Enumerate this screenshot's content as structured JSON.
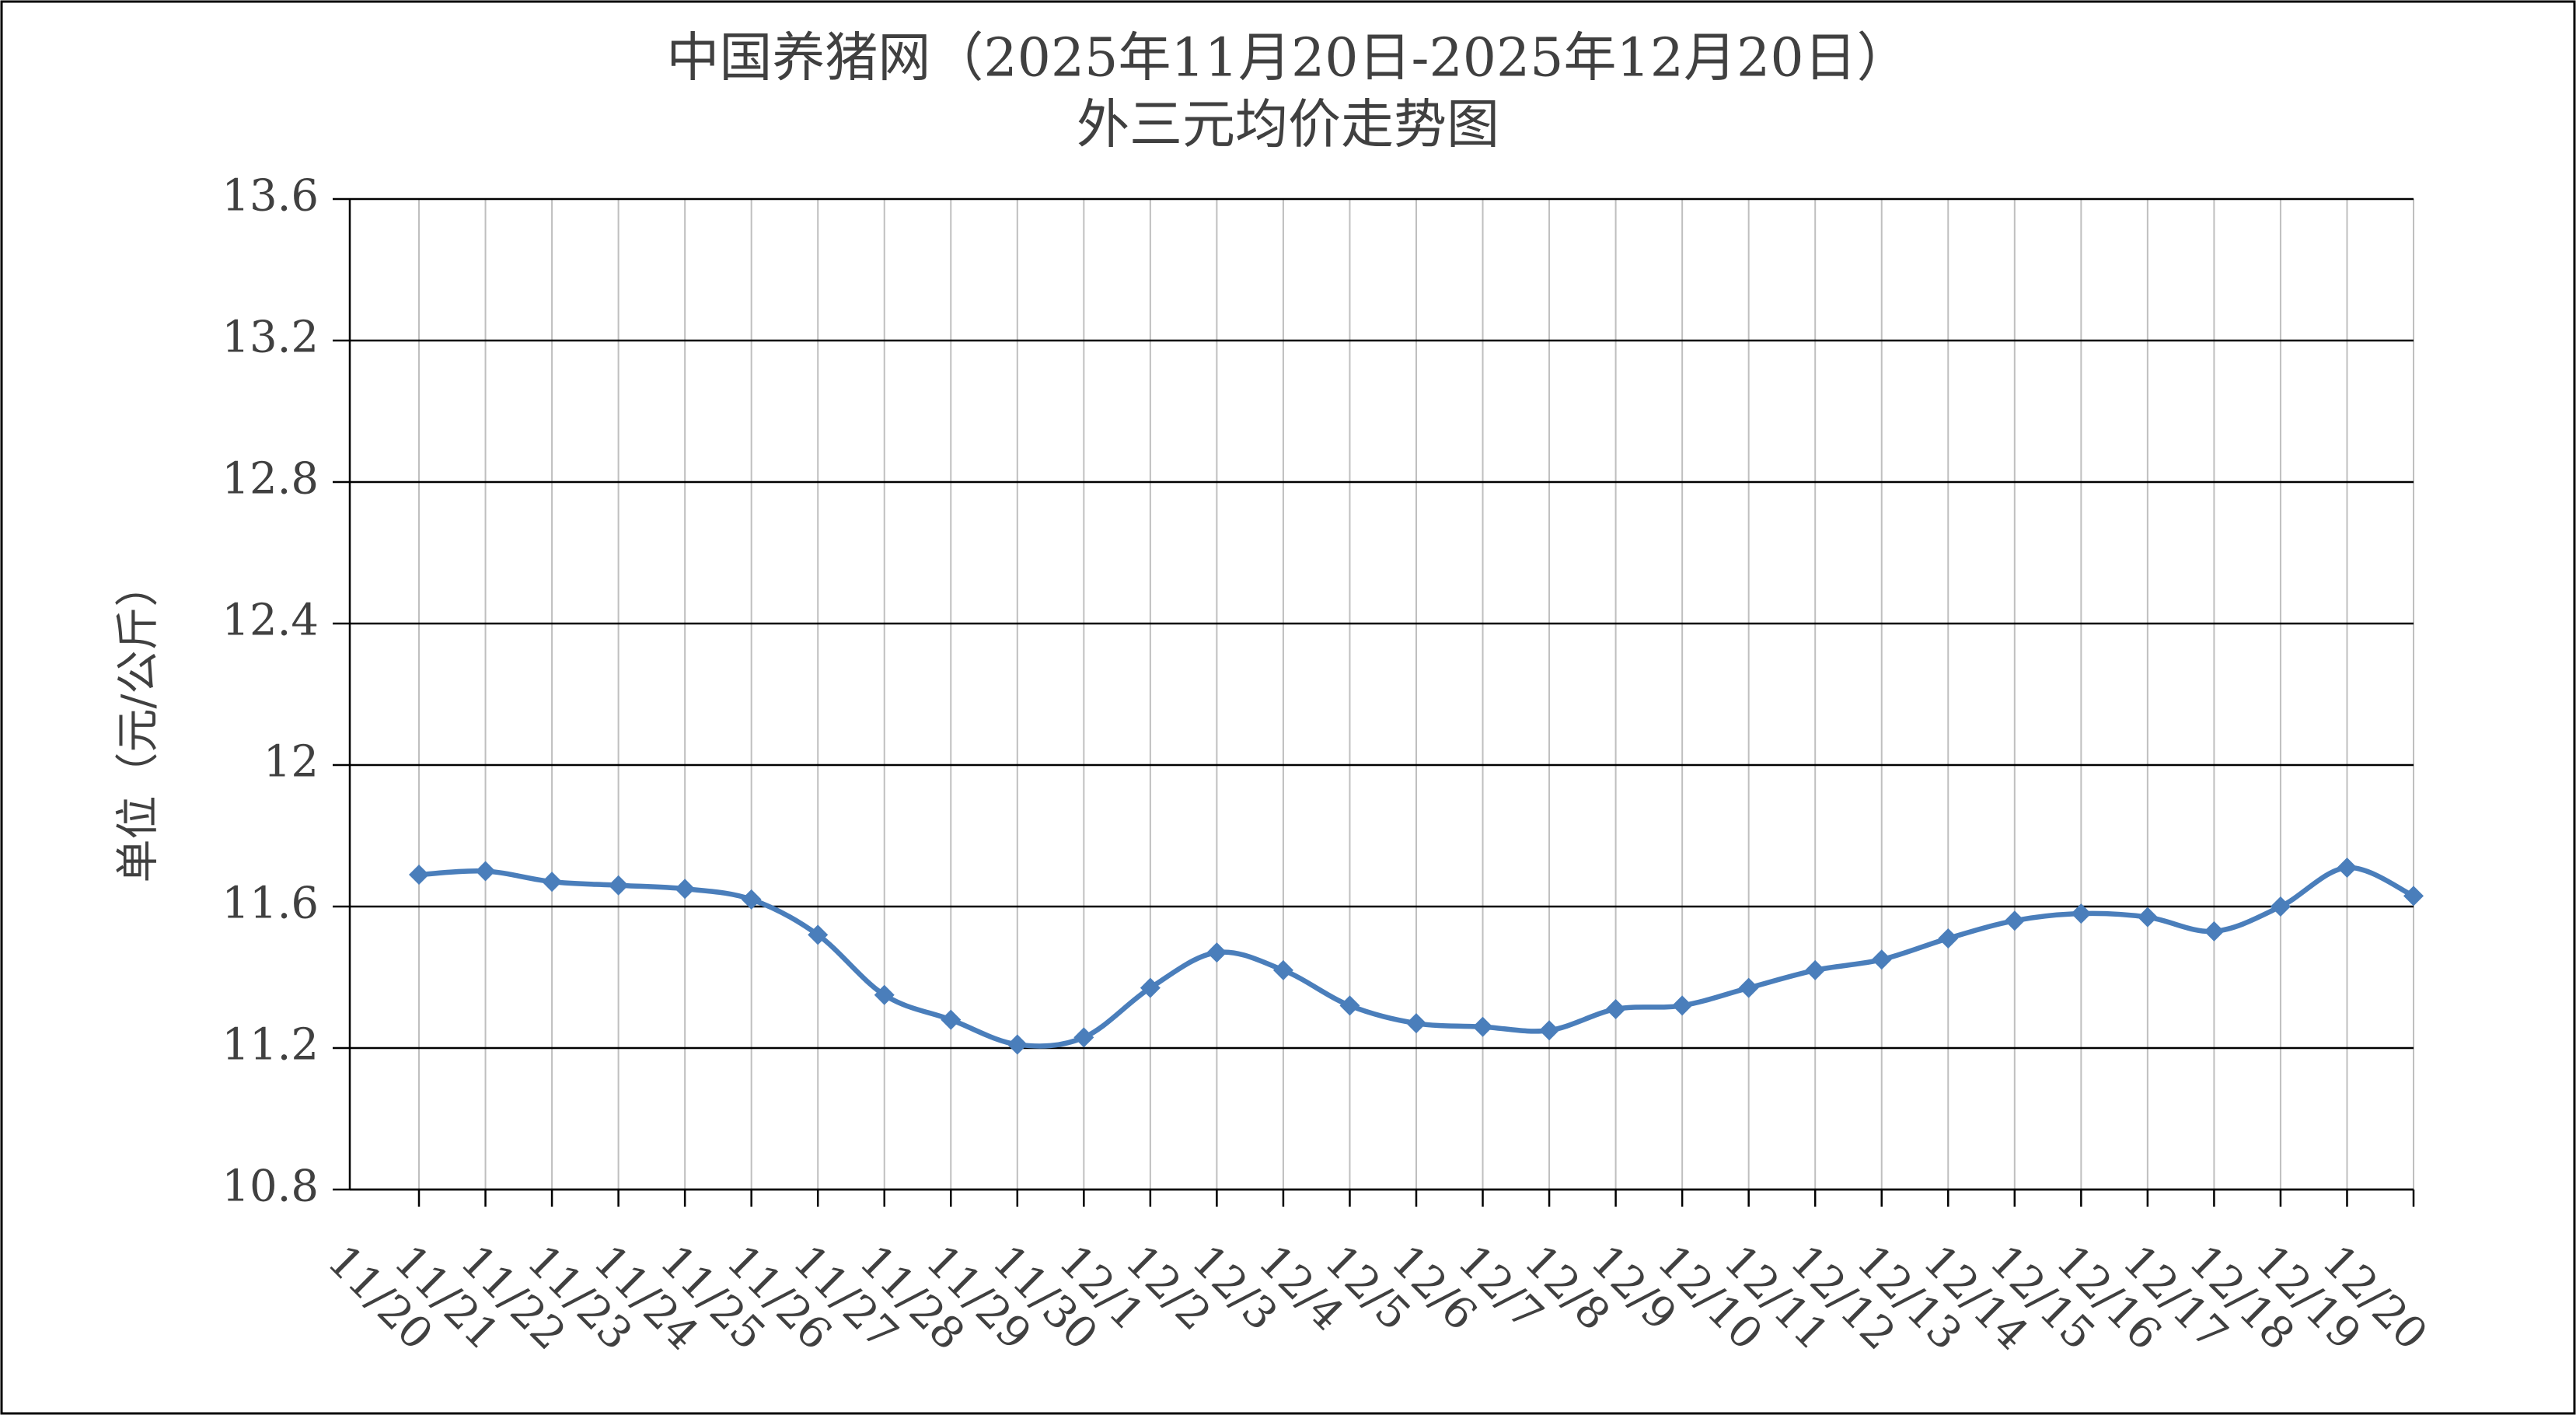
{
  "chart_data": {
    "type": "line",
    "title": "中国养猪网（2025年11月20日-2025年12月20日）",
    "subtitle": "外三元均价走势图",
    "y_label": "单位（元/公斤）",
    "categories": [
      "11/20",
      "11/21",
      "11/22",
      "11/23",
      "11/24",
      "11/25",
      "11/26",
      "11/27",
      "11/28",
      "11/29",
      "11/30",
      "12/1",
      "12/2",
      "12/3",
      "12/4",
      "12/5",
      "12/6",
      "12/7",
      "12/8",
      "12/9",
      "12/10",
      "12/11",
      "12/12",
      "12/13",
      "12/14",
      "12/15",
      "12/16",
      "12/17",
      "12/18",
      "12/19",
      "12/20"
    ],
    "values": [
      11.69,
      11.7,
      11.67,
      11.66,
      11.65,
      11.62,
      11.52,
      11.35,
      11.28,
      11.21,
      11.23,
      11.37,
      11.47,
      11.42,
      11.32,
      11.27,
      11.26,
      11.25,
      11.31,
      11.32,
      11.37,
      11.42,
      11.45,
      11.51,
      11.56,
      11.58,
      11.57,
      11.53,
      11.6,
      11.71,
      11.63
    ],
    "color": "#4a7ebb",
    "ylim": [
      10.8,
      13.6
    ],
    "yticks": [
      10.8,
      11.2,
      11.6,
      12,
      12.4,
      12.8,
      13.2,
      13.6
    ],
    "grid": true
  }
}
